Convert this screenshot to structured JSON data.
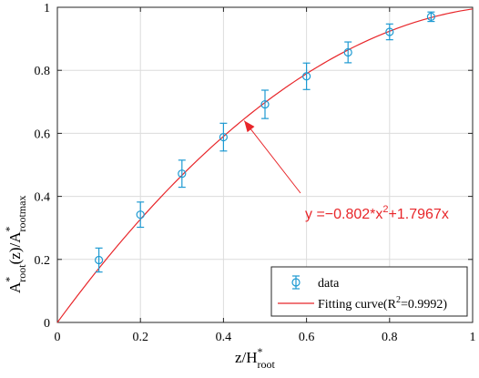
{
  "chart_data": {
    "type": "scatter",
    "x_range": [
      0,
      1
    ],
    "y_range": [
      0,
      1
    ],
    "x_ticks": [
      "0",
      "0.2",
      "0.4",
      "0.6",
      "0.8",
      "1"
    ],
    "y_ticks": [
      "0",
      "0.2",
      "0.4",
      "0.6",
      "0.8",
      "1"
    ],
    "grid": true,
    "xlabel": {
      "main": "z/H",
      "sup": "*",
      "sub": "root"
    },
    "ylabel": {
      "a": "A",
      "a_sup": "*",
      "a_sub": "root",
      "mid": "(z)/A",
      "b_sup": "*",
      "b_sub": "rootmax"
    },
    "series": [
      {
        "name": "data",
        "marker": "circle",
        "color": "#1e9ad2",
        "x": [
          0.1,
          0.2,
          0.3,
          0.4,
          0.5,
          0.6,
          0.7,
          0.8,
          0.9
        ],
        "y": [
          0.198,
          0.342,
          0.472,
          0.588,
          0.692,
          0.781,
          0.857,
          0.922,
          0.97
        ],
        "err": [
          0.038,
          0.04,
          0.043,
          0.044,
          0.045,
          0.042,
          0.033,
          0.025,
          0.015
        ]
      },
      {
        "name_prefix": "Fitting curve(R",
        "name_sup": "2",
        "name_suffix": "=0.9992)",
        "type": "line",
        "color": "#e8262a",
        "a": -0.802,
        "b": 1.7967
      }
    ],
    "annotation": {
      "prefix": "y =−0.802*x",
      "sup": "2",
      "suffix": "+1.7967x",
      "color": "#e8262a",
      "arrow_to": [
        0.45,
        0.64
      ]
    },
    "legend_position": "bottom-right"
  }
}
